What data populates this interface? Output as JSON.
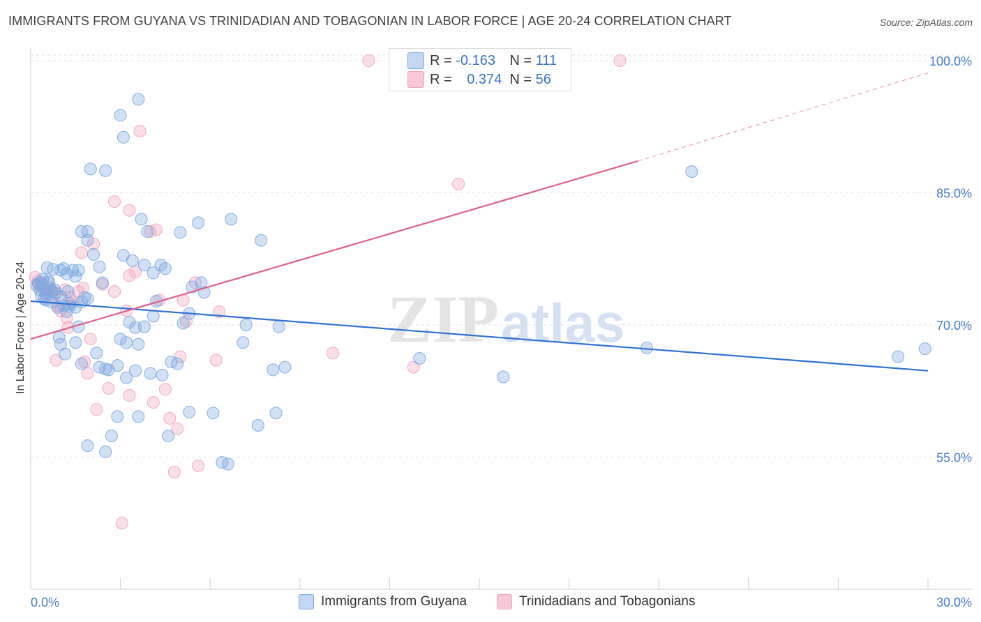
{
  "title": "IMMIGRANTS FROM GUYANA VS TRINIDADIAN AND TOBAGONIAN IN LABOR FORCE | AGE 20-24 CORRELATION CHART",
  "source": "Source: ZipAtlas.com",
  "watermark": {
    "zip": "ZIP",
    "atlas": "atlas"
  },
  "legend": {
    "r_label": "R =",
    "n_label": "N =",
    "rows": [
      {
        "r": "-0.163",
        "n": "111"
      },
      {
        "r": "0.374",
        "n": "56"
      }
    ]
  },
  "bottom_legend": [
    "Immigrants from Guyana",
    "Trinidadians and Tobagonians"
  ],
  "colors": {
    "blue": "#7ba7e0",
    "blue_line": "#2f72d3",
    "pink": "#f0a3bf",
    "pink_line": "#e0608d",
    "axis_text": "#4a7cc9"
  },
  "chart_data": {
    "type": "scatter",
    "title": "IMMIGRANTS FROM GUYANA VS TRINIDADIAN AND TOBAGONIAN IN LABOR FORCE | AGE 20-24 CORRELATION CHART",
    "xlabel": "",
    "ylabel": "In Labor Force | Age 20-24",
    "xlim": [
      0,
      30
    ],
    "ylim": [
      40,
      101.5
    ],
    "x_tick_labels": [
      "0.0%",
      "30.0%"
    ],
    "y_ticks": [
      55,
      70,
      85,
      100
    ],
    "y_tick_labels": [
      "55.0%",
      "70.0%",
      "85.0%",
      "100.0%"
    ],
    "series": [
      {
        "name": "Immigrants from Guyana",
        "trend": {
          "x": [
            0,
            30
          ],
          "y": [
            72.7,
            64.8
          ],
          "dashed_after": null
        },
        "points": [
          [
            0.2,
            74.5
          ],
          [
            0.3,
            74
          ],
          [
            0.35,
            74.8
          ],
          [
            0.4,
            75.2
          ],
          [
            0.5,
            73.5
          ],
          [
            0.6,
            74.8
          ],
          [
            0.7,
            73.8
          ],
          [
            0.8,
            74
          ],
          [
            0.5,
            72.8
          ],
          [
            0.9,
            72
          ],
          [
            0.55,
            76.5
          ],
          [
            0.75,
            76.3
          ],
          [
            1.0,
            76.2
          ],
          [
            1.1,
            76.4
          ],
          [
            1.2,
            75.8
          ],
          [
            1.4,
            76.2
          ],
          [
            1.5,
            75.5
          ],
          [
            1.6,
            76.2
          ],
          [
            1.1,
            72.2
          ],
          [
            1.3,
            72.1
          ],
          [
            1.2,
            71.5
          ],
          [
            1.0,
            73.2
          ],
          [
            1.3,
            72.4
          ],
          [
            1.5,
            72.0
          ],
          [
            1.7,
            72.6
          ],
          [
            1.9,
            73.0
          ],
          [
            1.6,
            69.8
          ],
          [
            1.5,
            68.0
          ],
          [
            0.95,
            68.6
          ],
          [
            1.0,
            67.8
          ],
          [
            1.15,
            66.7
          ],
          [
            1.7,
            65.6
          ],
          [
            2.2,
            66.8
          ],
          [
            2.3,
            65.2
          ],
          [
            2.5,
            65.0
          ],
          [
            2.9,
            65.4
          ],
          [
            3.2,
            64.0
          ],
          [
            3.5,
            64.8
          ],
          [
            3.0,
            68.4
          ],
          [
            3.2,
            68.0
          ],
          [
            3.6,
            67.8
          ],
          [
            3.3,
            70.3
          ],
          [
            3.5,
            69.7
          ],
          [
            3.8,
            69.8
          ],
          [
            2.1,
            78.0
          ],
          [
            1.9,
            79.6
          ],
          [
            2.3,
            76.6
          ],
          [
            2.4,
            74.8
          ],
          [
            1.7,
            80.6
          ],
          [
            1.9,
            80.6
          ],
          [
            2.0,
            87.7
          ],
          [
            2.5,
            87.5
          ],
          [
            3.0,
            93.8
          ],
          [
            3.1,
            91.3
          ],
          [
            3.6,
            95.6
          ],
          [
            3.7,
            82.0
          ],
          [
            3.9,
            80.6
          ],
          [
            3.1,
            77.9
          ],
          [
            3.4,
            77.3
          ],
          [
            3.8,
            76.8
          ],
          [
            4.1,
            75.9
          ],
          [
            4.35,
            76.8
          ],
          [
            4.5,
            76.4
          ],
          [
            4.2,
            72.7
          ],
          [
            4.1,
            71.0
          ],
          [
            4.0,
            64.5
          ],
          [
            4.4,
            64.3
          ],
          [
            4.7,
            65.8
          ],
          [
            4.9,
            65.6
          ],
          [
            5.1,
            70.2
          ],
          [
            5.3,
            71.3
          ],
          [
            5.4,
            74.3
          ],
          [
            5.7,
            74.8
          ],
          [
            5.8,
            73.7
          ],
          [
            5.6,
            81.6
          ],
          [
            6.7,
            82.0
          ],
          [
            5.0,
            80.5
          ],
          [
            7.7,
            79.6
          ],
          [
            7.2,
            70.0
          ],
          [
            7.1,
            68.0
          ],
          [
            8.1,
            64.9
          ],
          [
            8.5,
            65.2
          ],
          [
            8.3,
            69.8
          ],
          [
            6.1,
            60.0
          ],
          [
            5.3,
            60.1
          ],
          [
            8.2,
            60.0
          ],
          [
            7.6,
            58.6
          ],
          [
            3.6,
            59.6
          ],
          [
            2.9,
            59.6
          ],
          [
            4.6,
            57.4
          ],
          [
            2.7,
            57.4
          ],
          [
            1.9,
            56.3
          ],
          [
            2.5,
            55.6
          ],
          [
            6.6,
            54.2
          ],
          [
            6.4,
            54.4
          ],
          [
            13.0,
            66.2
          ],
          [
            15.8,
            64.1
          ],
          [
            20.6,
            67.4
          ],
          [
            22.1,
            87.4
          ],
          [
            29.0,
            66.4
          ],
          [
            29.9,
            67.3
          ],
          [
            0.45,
            73.0
          ],
          [
            0.65,
            74.2
          ],
          [
            0.85,
            73.6
          ],
          [
            1.25,
            73.8
          ],
          [
            0.35,
            73.3
          ],
          [
            0.25,
            74.7
          ],
          [
            0.6,
            75.0
          ],
          [
            0.7,
            72.6
          ],
          [
            1.8,
            73.1
          ],
          [
            2.6,
            64.9
          ]
        ]
      },
      {
        "name": "Trinidadians and Tobagonians",
        "trend": {
          "x": [
            0,
            20.3
          ],
          "y": [
            68.4,
            88.6
          ],
          "dashed_after": {
            "x": [
              20.3,
              30
            ],
            "y": [
              88.6,
              98.6
            ]
          }
        },
        "points": [
          [
            0.15,
            75.4
          ],
          [
            0.25,
            75.0
          ],
          [
            0.3,
            74.5
          ],
          [
            0.4,
            74.2
          ],
          [
            0.5,
            73.8
          ],
          [
            0.6,
            74.0
          ],
          [
            0.7,
            73.4
          ],
          [
            0.8,
            73.6
          ],
          [
            0.9,
            72.2
          ],
          [
            1.0,
            71.6
          ],
          [
            1.15,
            74.0
          ],
          [
            1.3,
            73.2
          ],
          [
            1.4,
            72.6
          ],
          [
            1.6,
            73.8
          ],
          [
            1.75,
            74.2
          ],
          [
            1.7,
            78.2
          ],
          [
            2.1,
            79.2
          ],
          [
            1.2,
            70.8
          ],
          [
            1.25,
            69.7
          ],
          [
            0.85,
            66.0
          ],
          [
            1.8,
            65.8
          ],
          [
            1.9,
            64.5
          ],
          [
            2.0,
            68.4
          ],
          [
            2.4,
            74.6
          ],
          [
            2.6,
            62.8
          ],
          [
            2.2,
            60.4
          ],
          [
            2.8,
            84.0
          ],
          [
            3.2,
            71.6
          ],
          [
            2.8,
            73.8
          ],
          [
            3.3,
            75.6
          ],
          [
            3.5,
            76.0
          ],
          [
            3.3,
            83.0
          ],
          [
            3.65,
            92.0
          ],
          [
            4.0,
            80.6
          ],
          [
            4.2,
            80.8
          ],
          [
            4.3,
            72.8
          ],
          [
            3.3,
            62.0
          ],
          [
            4.1,
            61.2
          ],
          [
            4.5,
            62.7
          ],
          [
            4.65,
            59.4
          ],
          [
            4.9,
            58.2
          ],
          [
            4.8,
            53.3
          ],
          [
            5.0,
            66.4
          ],
          [
            5.1,
            72.8
          ],
          [
            5.2,
            70.4
          ],
          [
            5.5,
            74.8
          ],
          [
            5.6,
            54.0
          ],
          [
            6.2,
            66.0
          ],
          [
            6.3,
            71.5
          ],
          [
            3.05,
            47.5
          ],
          [
            10.1,
            66.8
          ],
          [
            12.8,
            65.2
          ],
          [
            14.3,
            86.0
          ],
          [
            11.3,
            100.0
          ],
          [
            19.7,
            100.0
          ],
          [
            0.55,
            73.9
          ]
        ]
      }
    ]
  }
}
